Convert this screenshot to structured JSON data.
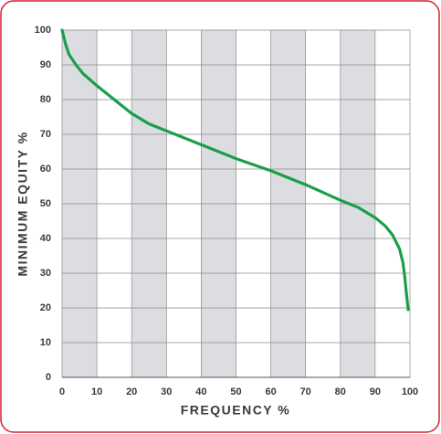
{
  "chart_data": {
    "type": "line",
    "xlabel": "FREQUENCY %",
    "ylabel": "MINIMUM EQUITY %",
    "x": [
      0,
      1,
      2,
      4,
      6,
      10,
      15,
      20,
      25,
      30,
      40,
      50,
      60,
      70,
      80,
      85,
      90,
      93,
      95,
      96,
      97,
      98,
      98.5,
      99,
      99.5
    ],
    "series": [
      {
        "color": "#1a9e4b",
        "values": [
          100,
          96,
          93,
          90,
          87.5,
          84,
          80,
          76,
          73,
          71,
          67,
          63,
          59.5,
          55.5,
          51,
          49,
          46,
          43.5,
          41,
          39,
          37,
          33,
          29,
          24,
          19.5
        ]
      }
    ],
    "xlim": [
      0,
      100
    ],
    "xticks": [
      0,
      10,
      20,
      30,
      40,
      50,
      60,
      70,
      80,
      90,
      100
    ],
    "ylim": [
      0,
      100
    ],
    "yticks": [
      0,
      10,
      20,
      30,
      40,
      50,
      60,
      70,
      80,
      90,
      100
    ],
    "grid": true,
    "alternating_bands": true,
    "band_color": "#dcdde0"
  }
}
